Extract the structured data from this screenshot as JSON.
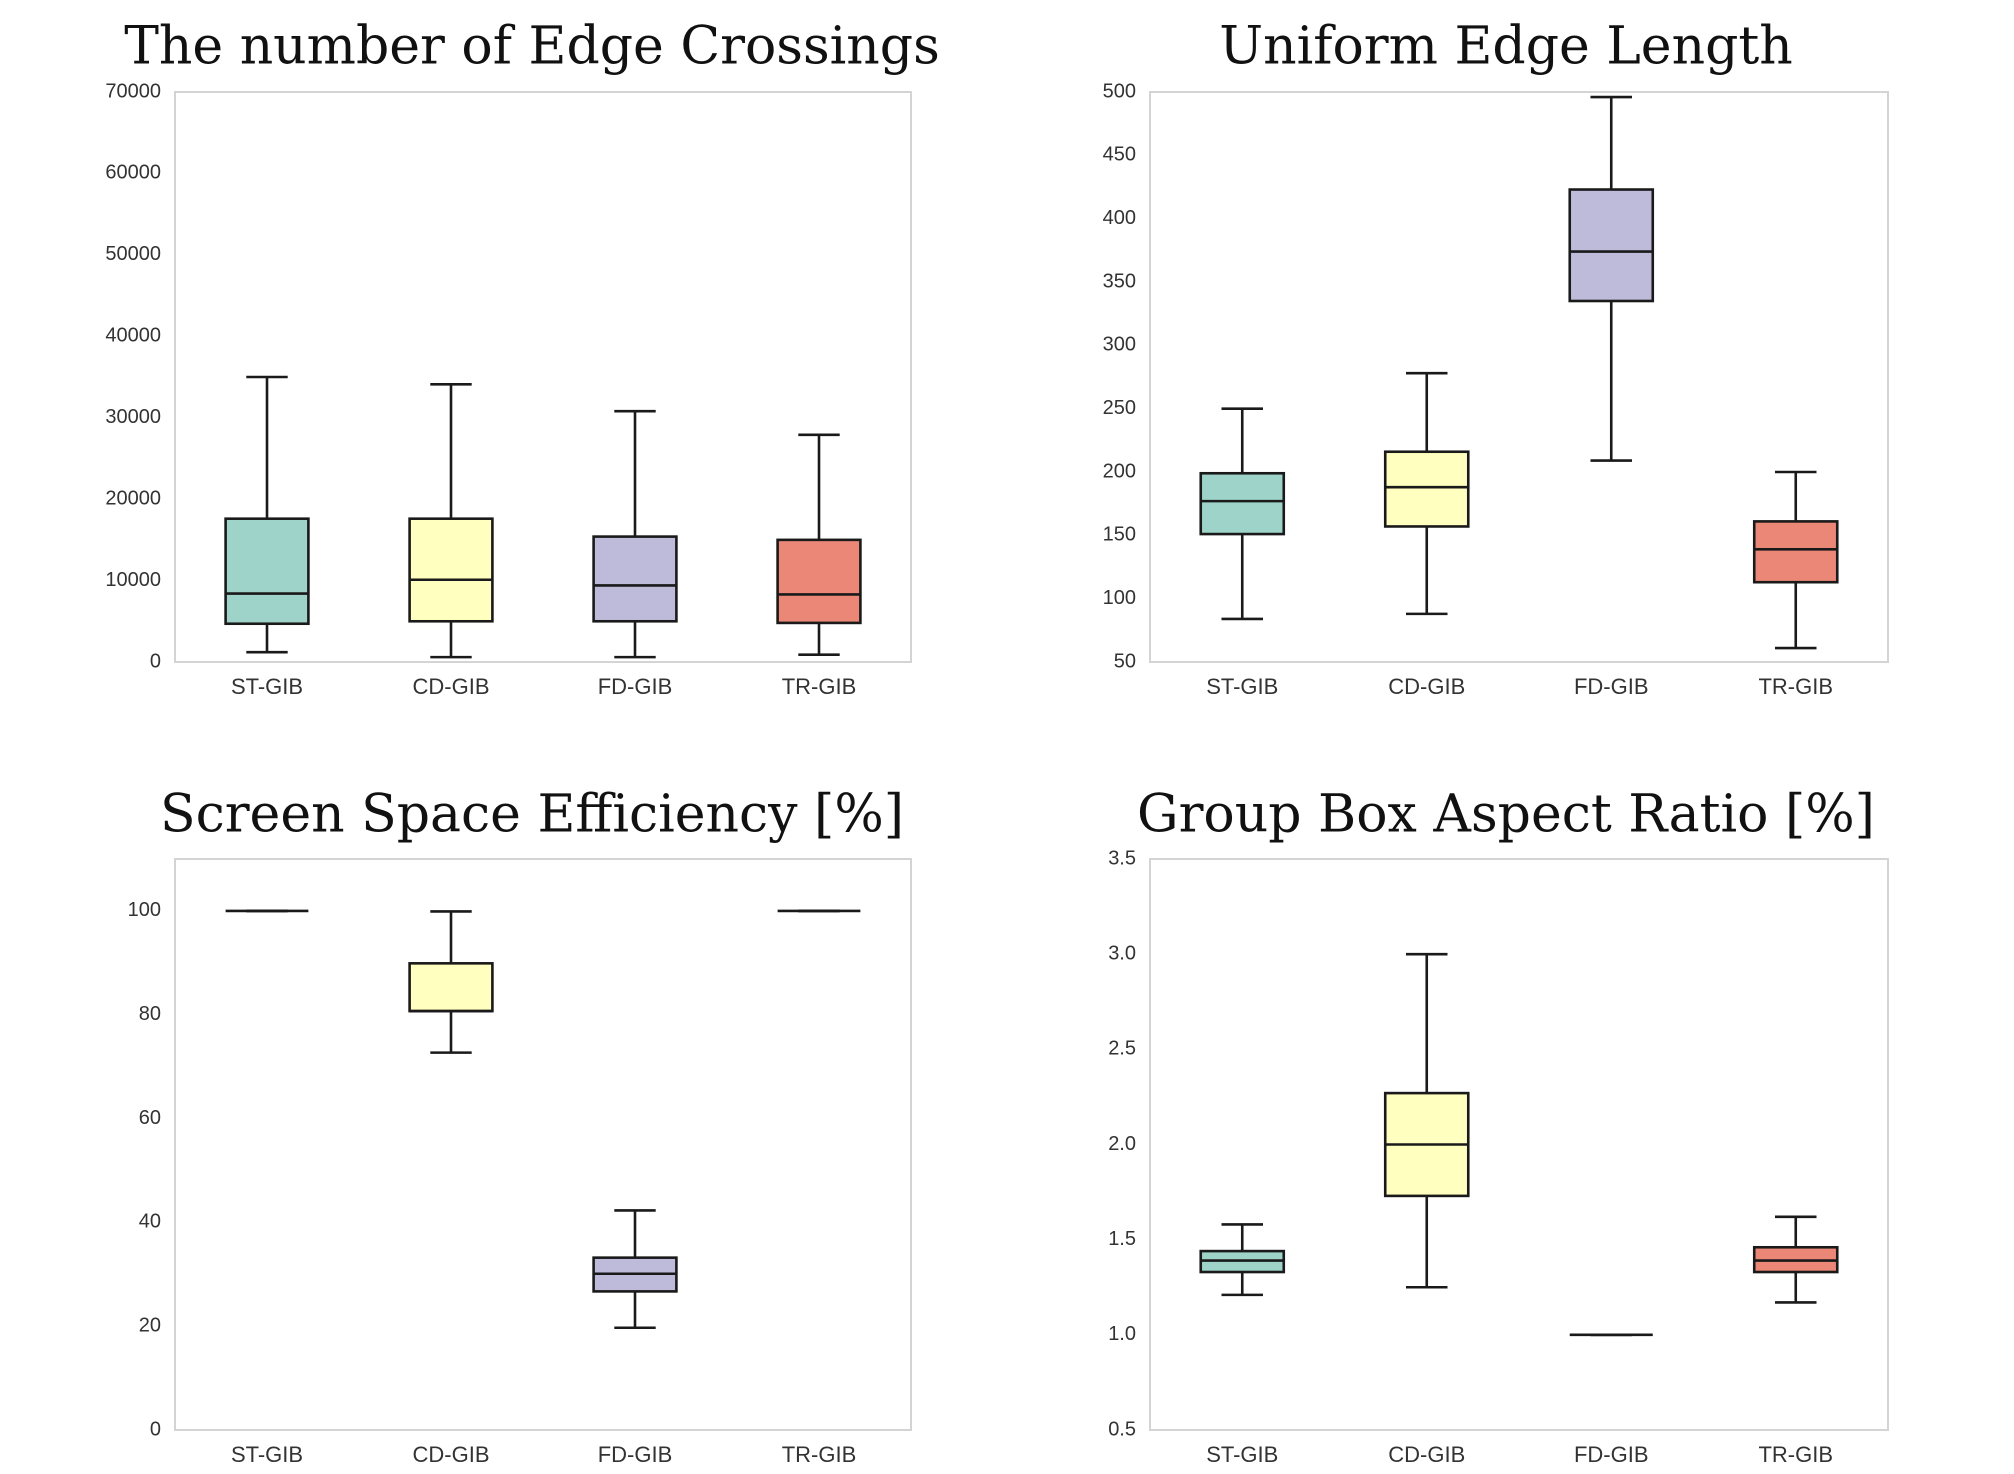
{
  "chart_data": [
    {
      "type": "box",
      "title": "The number of Edge Crossings",
      "ylim": [
        0,
        70000
      ],
      "yticks": [
        0,
        10000,
        20000,
        30000,
        40000,
        50000,
        60000,
        70000
      ],
      "ytick_labels": [
        "0",
        "10000",
        "20000",
        "30000",
        "40000",
        "50000",
        "60000",
        "70000"
      ],
      "grid": false,
      "categories": [
        "ST-GIB",
        "CD-GIB",
        "FD-GIB",
        "TR-GIB"
      ],
      "boxes": [
        {
          "whisker_low": 1200,
          "q1": 4700,
          "median": 8400,
          "q3": 17600,
          "whisker_high": 35000
        },
        {
          "whisker_low": 600,
          "q1": 5000,
          "median": 10100,
          "q3": 17600,
          "whisker_high": 34100
        },
        {
          "whisker_low": 600,
          "q1": 5000,
          "median": 9400,
          "q3": 15400,
          "whisker_high": 30800
        },
        {
          "whisker_low": 900,
          "q1": 4800,
          "median": 8300,
          "q3": 15000,
          "whisker_high": 27900
        }
      ]
    },
    {
      "type": "box",
      "title": "Uniform Edge Length",
      "ylim": [
        50,
        500
      ],
      "yticks": [
        50,
        100,
        150,
        200,
        250,
        300,
        350,
        400,
        450,
        500
      ],
      "ytick_labels": [
        "50",
        "100",
        "150",
        "200",
        "250",
        "300",
        "350",
        "400",
        "450",
        "500"
      ],
      "grid": false,
      "categories": [
        "ST-GIB",
        "CD-GIB",
        "FD-GIB",
        "TR-GIB"
      ],
      "boxes": [
        {
          "whisker_low": 84,
          "q1": 151,
          "median": 177,
          "q3": 199,
          "whisker_high": 250
        },
        {
          "whisker_low": 88,
          "q1": 157,
          "median": 188,
          "q3": 216,
          "whisker_high": 278
        },
        {
          "whisker_low": 209,
          "q1": 335,
          "median": 374,
          "q3": 423,
          "whisker_high": 496
        },
        {
          "whisker_low": 61,
          "q1": 113,
          "median": 139,
          "q3": 161,
          "whisker_high": 200
        }
      ]
    },
    {
      "type": "box",
      "title": "Screen Space Efficiency  [%]",
      "ylim": [
        0,
        110
      ],
      "yticks": [
        0,
        20,
        40,
        60,
        80,
        100
      ],
      "ytick_labels": [
        "0",
        "20",
        "40",
        "60",
        "80",
        "100"
      ],
      "grid": false,
      "categories": [
        "ST-GIB",
        "CD-GIB",
        "FD-GIB",
        "TR-GIB"
      ],
      "boxes": [
        {
          "whisker_low": 100,
          "q1": 100,
          "median": 100,
          "q3": 100,
          "whisker_high": 100
        },
        {
          "whisker_low": 72.7,
          "q1": 80.7,
          "median": 80.7,
          "q3": 89.9,
          "whisker_high": 99.9
        },
        {
          "whisker_low": 19.7,
          "q1": 26.7,
          "median": 30.1,
          "q3": 33.2,
          "whisker_high": 42.3
        },
        {
          "whisker_low": 100,
          "q1": 100,
          "median": 100,
          "q3": 100,
          "whisker_high": 100
        }
      ]
    },
    {
      "type": "box",
      "title": "Group Box Aspect Ratio [%]",
      "ylim": [
        0.5,
        3.5
      ],
      "yticks": [
        0.5,
        1.0,
        1.5,
        2.0,
        2.5,
        3.0,
        3.5
      ],
      "ytick_labels": [
        "0.5",
        "1.0",
        "1.5",
        "2.0",
        "2.5",
        "3.0",
        "3.5"
      ],
      "grid": false,
      "categories": [
        "ST-GIB",
        "CD-GIB",
        "FD-GIB",
        "TR-GIB"
      ],
      "boxes": [
        {
          "whisker_low": 1.21,
          "q1": 1.33,
          "median": 1.39,
          "q3": 1.44,
          "whisker_high": 1.58
        },
        {
          "whisker_low": 1.25,
          "q1": 1.73,
          "median": 2.0,
          "q3": 2.27,
          "whisker_high": 3.0
        },
        {
          "whisker_low": 1.0,
          "q1": 1.0,
          "median": 1.0,
          "q3": 1.0,
          "whisker_high": 1.0
        },
        {
          "whisker_low": 1.17,
          "q1": 1.33,
          "median": 1.39,
          "q3": 1.46,
          "whisker_high": 1.62
        }
      ]
    }
  ],
  "colors": {
    "categories": [
      "#9dd3c8",
      "#ffffbf",
      "#bebada",
      "#eb8776"
    ],
    "frame": "#d4d4d4",
    "outline": "#1a1a1a"
  }
}
